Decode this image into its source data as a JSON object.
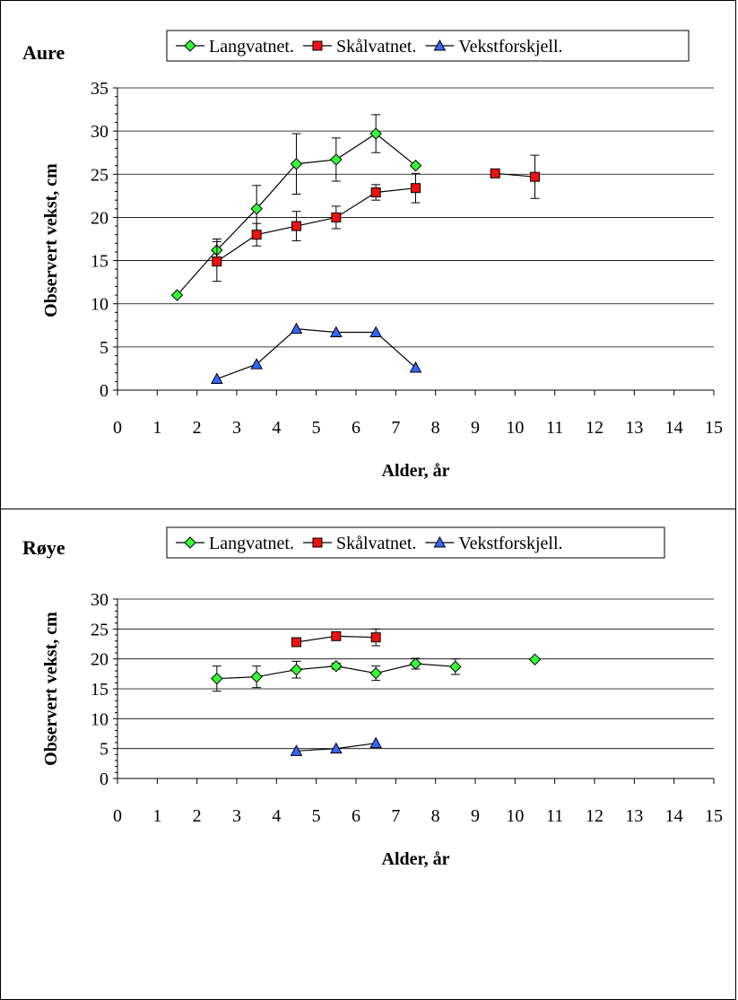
{
  "chart_data": [
    {
      "type": "line",
      "title": "Aure",
      "xlabel": "Alder, år",
      "ylabel": "Observert vekst, cm",
      "xlim": [
        0,
        15
      ],
      "ylim": [
        0,
        35
      ],
      "x_ticks": [
        0,
        1,
        2,
        3,
        4,
        5,
        6,
        7,
        8,
        9,
        10,
        11,
        12,
        13,
        14,
        15
      ],
      "y_ticks": [
        0,
        5,
        10,
        15,
        20,
        25,
        30,
        35
      ],
      "grid": "horizontal",
      "legend": "top",
      "series": [
        {
          "name": "Langvatnet.",
          "color": "#33ff33",
          "marker": "diamond",
          "segments": [
            [
              {
                "x": 1.5,
                "y": 11
              },
              {
                "x": 2.5,
                "y": 16.2,
                "err": 1.3
              },
              {
                "x": 3.5,
                "y": 21,
                "err": 2.7
              },
              {
                "x": 4.5,
                "y": 26.2,
                "err": 3.5
              },
              {
                "x": 5.5,
                "y": 26.7,
                "err": 2.5
              },
              {
                "x": 6.5,
                "y": 29.7,
                "err": 2.2
              },
              {
                "x": 7.5,
                "y": 26
              }
            ]
          ]
        },
        {
          "name": "Skålvatnet.",
          "color": "#ee1111",
          "marker": "square",
          "segments": [
            [
              {
                "x": 2.5,
                "y": 14.9,
                "err": 2.3
              },
              {
                "x": 3.5,
                "y": 18,
                "err": 1.3
              },
              {
                "x": 4.5,
                "y": 19,
                "err": 1.7
              },
              {
                "x": 5.5,
                "y": 20,
                "err": 1.3
              },
              {
                "x": 6.5,
                "y": 22.9,
                "err": 0.9
              },
              {
                "x": 7.5,
                "y": 23.4,
                "err": 1.7
              }
            ],
            [
              {
                "x": 9.5,
                "y": 25.1
              },
              {
                "x": 10.5,
                "y": 24.7,
                "err": 2.5
              }
            ]
          ]
        },
        {
          "name": "Vekstforskjell.",
          "color": "#3366ff",
          "marker": "triangle",
          "segments": [
            [
              {
                "x": 2.5,
                "y": 1.3
              },
              {
                "x": 3.5,
                "y": 3
              },
              {
                "x": 4.5,
                "y": 7.1
              },
              {
                "x": 5.5,
                "y": 6.7
              },
              {
                "x": 6.5,
                "y": 6.7
              },
              {
                "x": 7.5,
                "y": 2.6
              }
            ]
          ]
        }
      ]
    },
    {
      "type": "line",
      "title": "Røye",
      "xlabel": "Alder, år",
      "ylabel": "Observert vekst, cm",
      "xlim": [
        0,
        15
      ],
      "ylim": [
        0,
        30
      ],
      "x_ticks": [
        0,
        1,
        2,
        3,
        4,
        5,
        6,
        7,
        8,
        9,
        10,
        11,
        12,
        13,
        14,
        15
      ],
      "y_ticks": [
        0,
        5,
        10,
        15,
        20,
        25,
        30
      ],
      "grid": "horizontal",
      "legend": "top",
      "series": [
        {
          "name": "Langvatnet.",
          "color": "#33ff33",
          "marker": "diamond",
          "segments": [
            [
              {
                "x": 2.5,
                "y": 16.7,
                "err": 2.1
              },
              {
                "x": 3.5,
                "y": 17,
                "err": 1.8
              },
              {
                "x": 4.5,
                "y": 18.2,
                "err": 1.4
              },
              {
                "x": 5.5,
                "y": 18.8,
                "err": 0.5
              },
              {
                "x": 6.5,
                "y": 17.6,
                "err": 1.2
              },
              {
                "x": 7.5,
                "y": 19.2,
                "err": 0.9
              },
              {
                "x": 8.5,
                "y": 18.7,
                "err": 1.3
              }
            ],
            [
              {
                "x": 10.5,
                "y": 19.9
              }
            ]
          ]
        },
        {
          "name": "Skålvatnet.",
          "color": "#ee1111",
          "marker": "square",
          "segments": [
            [
              {
                "x": 4.5,
                "y": 22.8
              },
              {
                "x": 5.5,
                "y": 23.8,
                "err": 0.5
              },
              {
                "x": 6.5,
                "y": 23.6,
                "err": 1.4
              }
            ]
          ]
        },
        {
          "name": "Vekstforskjell.",
          "color": "#3366ff",
          "marker": "triangle",
          "segments": [
            [
              {
                "x": 4.5,
                "y": 4.6
              },
              {
                "x": 5.5,
                "y": 5
              },
              {
                "x": 6.5,
                "y": 5.9
              }
            ]
          ]
        }
      ]
    }
  ]
}
